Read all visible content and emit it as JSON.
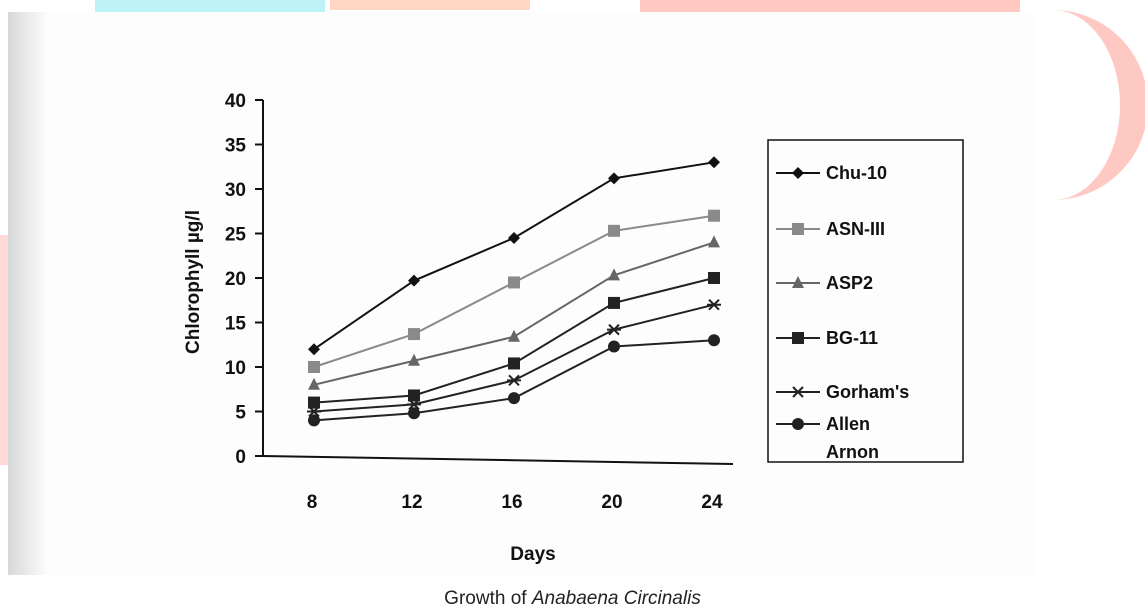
{
  "chart_data": {
    "type": "line",
    "title": "",
    "xlabel": "Days",
    "ylabel": "Chlorophyll µg/l",
    "x": [
      8,
      12,
      16,
      20,
      24
    ],
    "ylim": [
      0,
      40
    ],
    "yticks": [
      0,
      5,
      10,
      15,
      20,
      25,
      30,
      35,
      40
    ],
    "grid": false,
    "legend_position": "right",
    "series": [
      {
        "name": "Chu-10",
        "marker": "diamond",
        "color": "#111111",
        "values": [
          12,
          19.7,
          24.5,
          31.2,
          33
        ]
      },
      {
        "name": "ASN-III",
        "marker": "square",
        "color": "#8a8a8a",
        "values": [
          10,
          13.7,
          19.5,
          25.3,
          27
        ]
      },
      {
        "name": "ASP2",
        "marker": "triangle",
        "color": "#666666",
        "values": [
          8,
          10.7,
          13.4,
          20.3,
          24
        ]
      },
      {
        "name": "BG-11",
        "marker": "square",
        "color": "#222222",
        "values": [
          6,
          6.8,
          10.4,
          17.2,
          20
        ]
      },
      {
        "name": "Gorham's",
        "marker": "asterisk",
        "color": "#222222",
        "values": [
          5,
          5.8,
          8.5,
          14.2,
          17
        ]
      },
      {
        "name": "Allen Arnon",
        "marker": "circle",
        "color": "#222222",
        "values": [
          4,
          4.8,
          6.5,
          12.3,
          13
        ]
      }
    ]
  },
  "caption": {
    "prefix": "Growth of ",
    "species": "Anabaena Circinalis"
  }
}
